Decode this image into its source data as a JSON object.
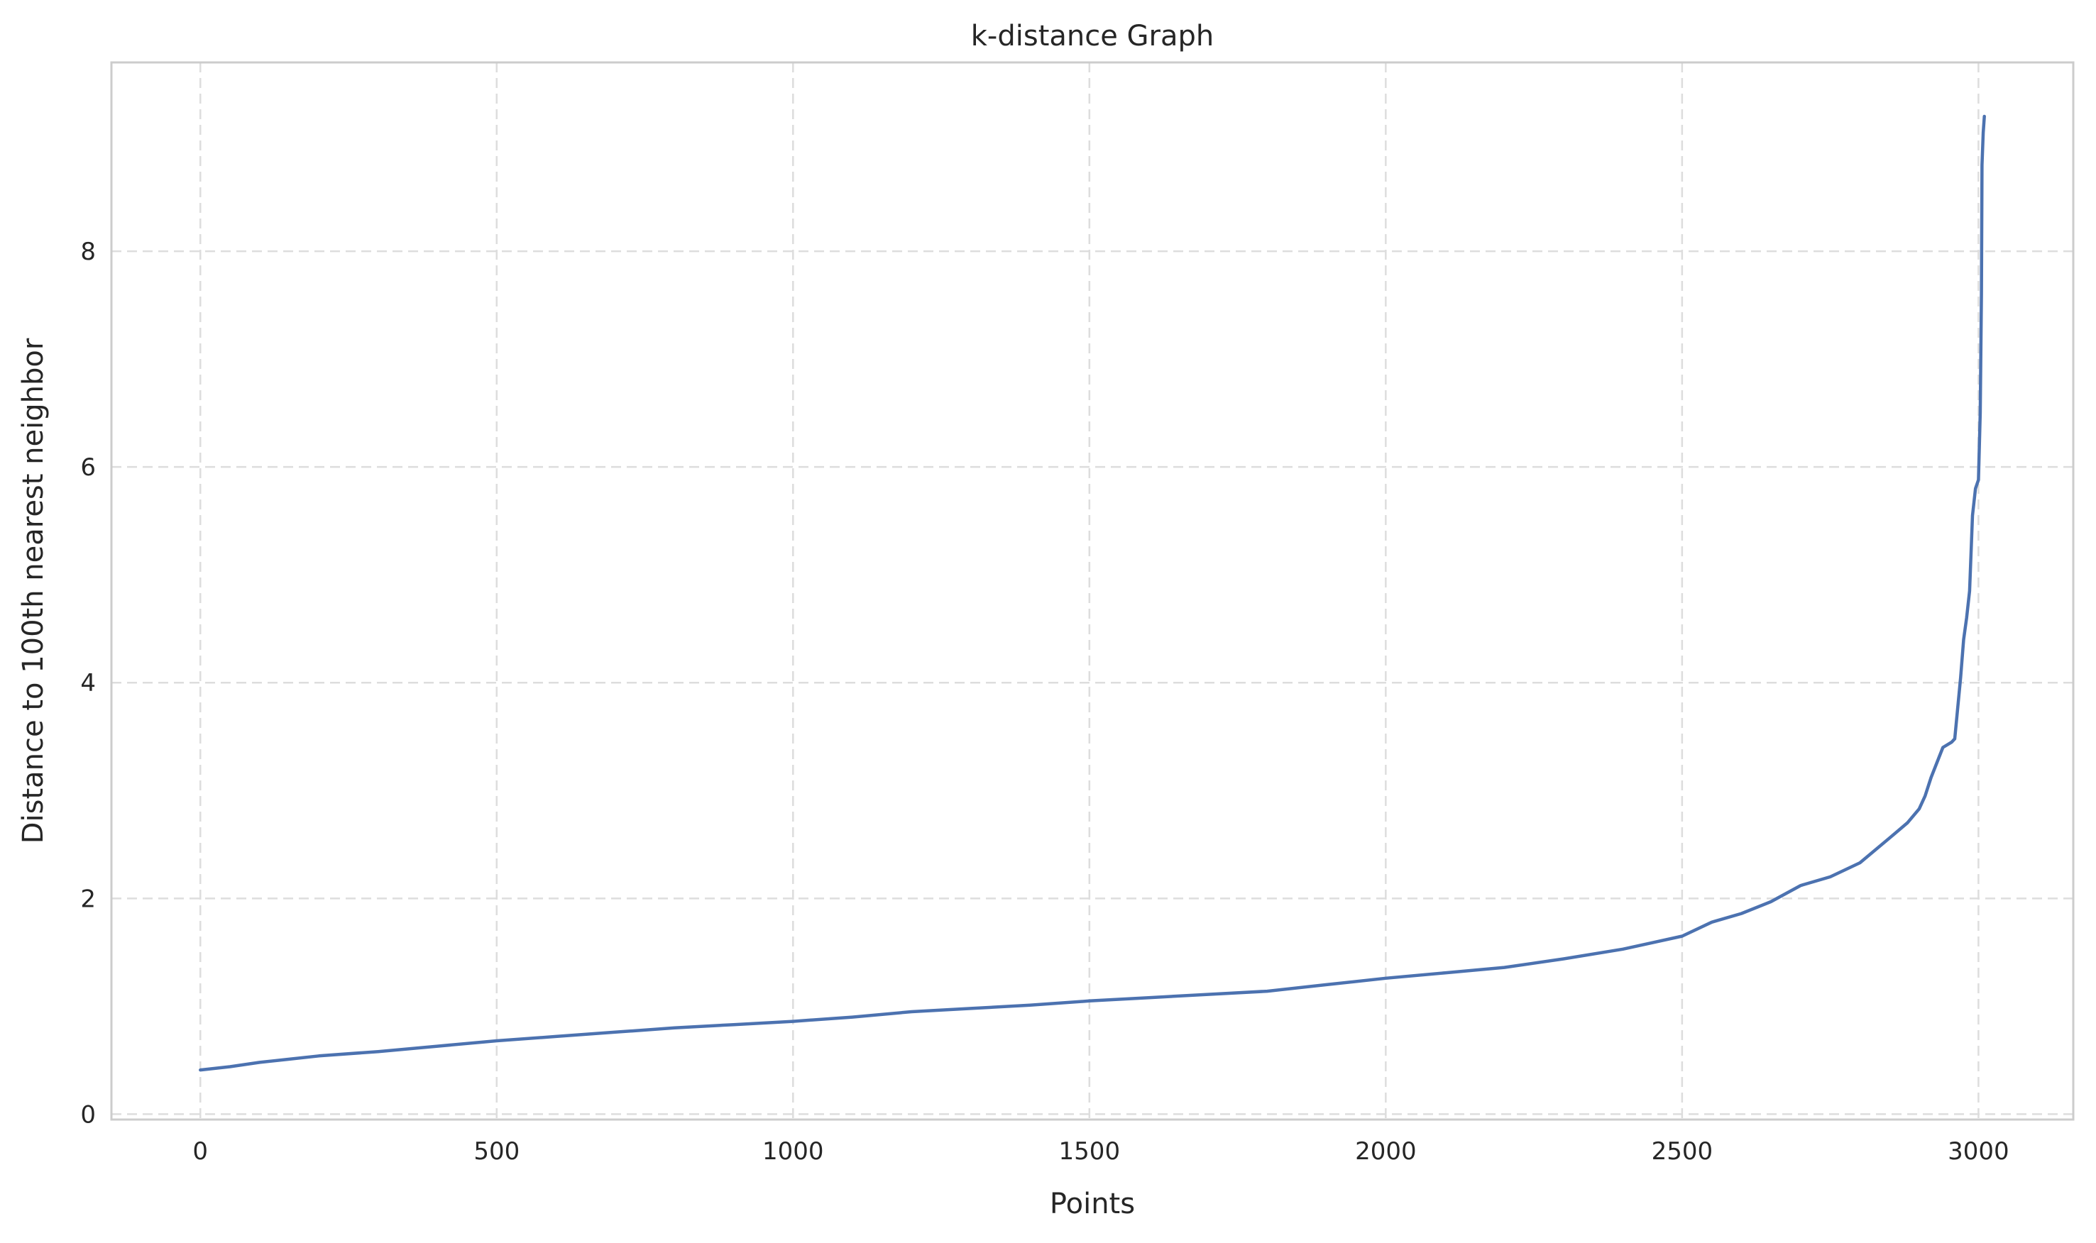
{
  "chart_data": {
    "type": "line",
    "title": "k-distance Graph",
    "xlabel": "Points",
    "ylabel": "Distance to 100th nearest neighbor",
    "xlim": [
      -150,
      3160
    ],
    "ylim": [
      -0.05,
      9.75
    ],
    "xticks": [
      "0",
      "500",
      "1000",
      "1500",
      "2000",
      "2500",
      "3000"
    ],
    "yticks": [
      "0",
      "2",
      "4",
      "6",
      "8"
    ],
    "grid": true,
    "color": "#4c72b0",
    "series": [
      {
        "x": [
          0,
          50,
          100,
          150,
          200,
          300,
          400,
          500,
          600,
          700,
          800,
          900,
          1000,
          1100,
          1200,
          1300,
          1400,
          1500,
          1600,
          1700,
          1800,
          1900,
          2000,
          2100,
          2200,
          2300,
          2400,
          2450,
          2500,
          2550,
          2600,
          2650,
          2700,
          2750,
          2800,
          2850,
          2880,
          2900,
          2910,
          2920,
          2940,
          2955,
          2960,
          2970,
          2975,
          2980,
          2985,
          2990,
          2995,
          3000,
          3003,
          3005,
          3006,
          3008,
          3010
        ],
        "y": [
          0.41,
          0.44,
          0.48,
          0.51,
          0.54,
          0.58,
          0.63,
          0.68,
          0.72,
          0.76,
          0.8,
          0.83,
          0.86,
          0.9,
          0.95,
          0.98,
          1.01,
          1.05,
          1.08,
          1.11,
          1.14,
          1.2,
          1.26,
          1.31,
          1.36,
          1.44,
          1.53,
          1.59,
          1.65,
          1.78,
          1.86,
          1.97,
          2.12,
          2.2,
          2.33,
          2.56,
          2.7,
          2.83,
          2.95,
          3.12,
          3.4,
          3.45,
          3.48,
          4.05,
          4.4,
          4.6,
          4.85,
          5.55,
          5.8,
          5.88,
          6.5,
          7.6,
          8.8,
          9.1,
          9.25
        ]
      }
    ]
  }
}
